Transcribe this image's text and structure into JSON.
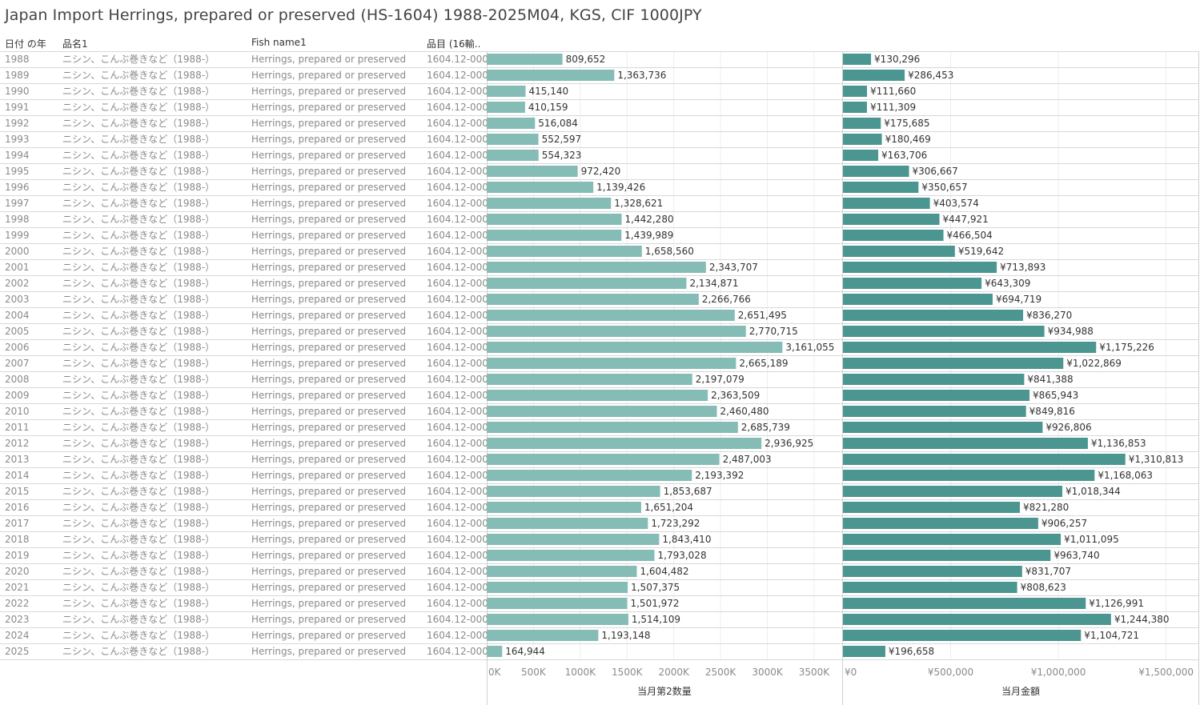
{
  "title": "Japan Import Herrings, prepared or preserved (HS-1604) 1988-2025M04, KGS, CIF 1000JPY",
  "headers": {
    "year": "日付 の年",
    "name_jp": "品名1",
    "name_en": "Fish name1",
    "code": "品目 (16輸.."
  },
  "chart_data": {
    "type": "bar",
    "orientation": "horizontal",
    "rows": [
      {
        "year": "1988",
        "name_jp": "ニシン、こんぶ巻きなど（1988-）",
        "name_en": "Herrings, prepared or preserved",
        "code": "1604.12-000"
      },
      {
        "year": "1989",
        "name_jp": "ニシン、こんぶ巻きなど（1988-）",
        "name_en": "Herrings, prepared or preserved",
        "code": "1604.12-000"
      },
      {
        "year": "1990",
        "name_jp": "ニシン、こんぶ巻きなど（1988-）",
        "name_en": "Herrings, prepared or preserved",
        "code": "1604.12-000"
      },
      {
        "year": "1991",
        "name_jp": "ニシン、こんぶ巻きなど（1988-）",
        "name_en": "Herrings, prepared or preserved",
        "code": "1604.12-000"
      },
      {
        "year": "1992",
        "name_jp": "ニシン、こんぶ巻きなど（1988-）",
        "name_en": "Herrings, prepared or preserved",
        "code": "1604.12-000"
      },
      {
        "year": "1993",
        "name_jp": "ニシン、こんぶ巻きなど（1988-）",
        "name_en": "Herrings, prepared or preserved",
        "code": "1604.12-000"
      },
      {
        "year": "1994",
        "name_jp": "ニシン、こんぶ巻きなど（1988-）",
        "name_en": "Herrings, prepared or preserved",
        "code": "1604.12-000"
      },
      {
        "year": "1995",
        "name_jp": "ニシン、こんぶ巻きなど（1988-）",
        "name_en": "Herrings, prepared or preserved",
        "code": "1604.12-000"
      },
      {
        "year": "1996",
        "name_jp": "ニシン、こんぶ巻きなど（1988-）",
        "name_en": "Herrings, prepared or preserved",
        "code": "1604.12-000"
      },
      {
        "year": "1997",
        "name_jp": "ニシン、こんぶ巻きなど（1988-）",
        "name_en": "Herrings, prepared or preserved",
        "code": "1604.12-000"
      },
      {
        "year": "1998",
        "name_jp": "ニシン、こんぶ巻きなど（1988-）",
        "name_en": "Herrings, prepared or preserved",
        "code": "1604.12-000"
      },
      {
        "year": "1999",
        "name_jp": "ニシン、こんぶ巻きなど（1988-）",
        "name_en": "Herrings, prepared or preserved",
        "code": "1604.12-000"
      },
      {
        "year": "2000",
        "name_jp": "ニシン、こんぶ巻きなど（1988-）",
        "name_en": "Herrings, prepared or preserved",
        "code": "1604.12-000"
      },
      {
        "year": "2001",
        "name_jp": "ニシン、こんぶ巻きなど（1988-）",
        "name_en": "Herrings, prepared or preserved",
        "code": "1604.12-000"
      },
      {
        "year": "2002",
        "name_jp": "ニシン、こんぶ巻きなど（1988-）",
        "name_en": "Herrings, prepared or preserved",
        "code": "1604.12-000"
      },
      {
        "year": "2003",
        "name_jp": "ニシン、こんぶ巻きなど（1988-）",
        "name_en": "Herrings, prepared or preserved",
        "code": "1604.12-000"
      },
      {
        "year": "2004",
        "name_jp": "ニシン、こんぶ巻きなど（1988-）",
        "name_en": "Herrings, prepared or preserved",
        "code": "1604.12-000"
      },
      {
        "year": "2005",
        "name_jp": "ニシン、こんぶ巻きなど（1988-）",
        "name_en": "Herrings, prepared or preserved",
        "code": "1604.12-000"
      },
      {
        "year": "2006",
        "name_jp": "ニシン、こんぶ巻きなど（1988-）",
        "name_en": "Herrings, prepared or preserved",
        "code": "1604.12-000"
      },
      {
        "year": "2007",
        "name_jp": "ニシン、こんぶ巻きなど（1988-）",
        "name_en": "Herrings, prepared or preserved",
        "code": "1604.12-000"
      },
      {
        "year": "2008",
        "name_jp": "ニシン、こんぶ巻きなど（1988-）",
        "name_en": "Herrings, prepared or preserved",
        "code": "1604.12-000"
      },
      {
        "year": "2009",
        "name_jp": "ニシン、こんぶ巻きなど（1988-）",
        "name_en": "Herrings, prepared or preserved",
        "code": "1604.12-000"
      },
      {
        "year": "2010",
        "name_jp": "ニシン、こんぶ巻きなど（1988-）",
        "name_en": "Herrings, prepared or preserved",
        "code": "1604.12-000"
      },
      {
        "year": "2011",
        "name_jp": "ニシン、こんぶ巻きなど（1988-）",
        "name_en": "Herrings, prepared or preserved",
        "code": "1604.12-000"
      },
      {
        "year": "2012",
        "name_jp": "ニシン、こんぶ巻きなど（1988-）",
        "name_en": "Herrings, prepared or preserved",
        "code": "1604.12-000"
      },
      {
        "year": "2013",
        "name_jp": "ニシン、こんぶ巻きなど（1988-）",
        "name_en": "Herrings, prepared or preserved",
        "code": "1604.12-000"
      },
      {
        "year": "2014",
        "name_jp": "ニシン、こんぶ巻きなど（1988-）",
        "name_en": "Herrings, prepared or preserved",
        "code": "1604.12-000"
      },
      {
        "year": "2015",
        "name_jp": "ニシン、こんぶ巻きなど（1988-）",
        "name_en": "Herrings, prepared or preserved",
        "code": "1604.12-000"
      },
      {
        "year": "2016",
        "name_jp": "ニシン、こんぶ巻きなど（1988-）",
        "name_en": "Herrings, prepared or preserved",
        "code": "1604.12-000"
      },
      {
        "year": "2017",
        "name_jp": "ニシン、こんぶ巻きなど（1988-）",
        "name_en": "Herrings, prepared or preserved",
        "code": "1604.12-000"
      },
      {
        "year": "2018",
        "name_jp": "ニシン、こんぶ巻きなど（1988-）",
        "name_en": "Herrings, prepared or preserved",
        "code": "1604.12-000"
      },
      {
        "year": "2019",
        "name_jp": "ニシン、こんぶ巻きなど（1988-）",
        "name_en": "Herrings, prepared or preserved",
        "code": "1604.12-000"
      },
      {
        "year": "2020",
        "name_jp": "ニシン、こんぶ巻きなど（1988-）",
        "name_en": "Herrings, prepared or preserved",
        "code": "1604.12-000"
      },
      {
        "year": "2021",
        "name_jp": "ニシン、こんぶ巻きなど（1988-）",
        "name_en": "Herrings, prepared or preserved",
        "code": "1604.12-000"
      },
      {
        "year": "2022",
        "name_jp": "ニシン、こんぶ巻きなど（1988-）",
        "name_en": "Herrings, prepared or preserved",
        "code": "1604.12-000"
      },
      {
        "year": "2023",
        "name_jp": "ニシン、こんぶ巻きなど（1988-）",
        "name_en": "Herrings, prepared or preserved",
        "code": "1604.12-000"
      },
      {
        "year": "2024",
        "name_jp": "ニシン、こんぶ巻きなど（1988-）",
        "name_en": "Herrings, prepared or preserved",
        "code": "1604.12-000"
      },
      {
        "year": "2025",
        "name_jp": "ニシン、こんぶ巻きなど（1988-）",
        "name_en": "Herrings, prepared or preserved",
        "code": "1604.12-000"
      }
    ],
    "series": [
      {
        "name": "当月第2数量",
        "color": "#86bcb6",
        "values": [
          809652,
          1363736,
          415140,
          410159,
          516084,
          552597,
          554323,
          972420,
          1139426,
          1328621,
          1442280,
          1439989,
          1658560,
          2343707,
          2134871,
          2266766,
          2651495,
          2770715,
          3161055,
          2665189,
          2197079,
          2363509,
          2460480,
          2685739,
          2936925,
          2487003,
          2193392,
          1853687,
          1651204,
          1723292,
          1843410,
          1793028,
          1604482,
          1507375,
          1501972,
          1514109,
          1193148,
          164944
        ],
        "labels": [
          "809,652",
          "1,363,736",
          "415,140",
          "410,159",
          "516,084",
          "552,597",
          "554,323",
          "972,420",
          "1,139,426",
          "1,328,621",
          "1,442,280",
          "1,439,989",
          "1,658,560",
          "2,343,707",
          "2,134,871",
          "2,266,766",
          "2,651,495",
          "2,770,715",
          "3,161,055",
          "2,665,189",
          "2,197,079",
          "2,363,509",
          "2,460,480",
          "2,685,739",
          "2,936,925",
          "2,487,003",
          "2,193,392",
          "1,853,687",
          "1,651,204",
          "1,723,292",
          "1,843,410",
          "1,793,028",
          "1,604,482",
          "1,507,375",
          "1,501,972",
          "1,514,109",
          "1,193,148",
          "164,944"
        ],
        "xlim": [
          0,
          3800000
        ],
        "ticks": [
          0,
          500000,
          1000000,
          1500000,
          2000000,
          2500000,
          3000000,
          3500000
        ],
        "tick_labels": [
          "0K",
          "500K",
          "1000K",
          "1500K",
          "2000K",
          "2500K",
          "3000K",
          "3500K"
        ],
        "xlabel": "当月第2数量"
      },
      {
        "name": "当月金額",
        "color": "#4b9690",
        "values": [
          130296,
          286453,
          111660,
          111309,
          175685,
          180469,
          163706,
          306667,
          350657,
          403574,
          447921,
          466504,
          519642,
          713893,
          643309,
          694719,
          836270,
          934988,
          1175226,
          1022869,
          841388,
          865943,
          849816,
          926806,
          1136853,
          1310813,
          1168063,
          1018344,
          821280,
          906257,
          1011095,
          963740,
          831707,
          808623,
          1126991,
          1244380,
          1104721,
          196658
        ],
        "labels": [
          "¥130,296",
          "¥286,453",
          "¥111,660",
          "¥111,309",
          "¥175,685",
          "¥180,469",
          "¥163,706",
          "¥306,667",
          "¥350,657",
          "¥403,574",
          "¥447,921",
          "¥466,504",
          "¥519,642",
          "¥713,893",
          "¥643,309",
          "¥694,719",
          "¥836,270",
          "¥934,988",
          "¥1,175,226",
          "¥1,022,869",
          "¥841,388",
          "¥865,943",
          "¥849,816",
          "¥926,806",
          "¥1,136,853",
          "¥1,310,813",
          "¥1,168,063",
          "¥1,018,344",
          "¥821,280",
          "¥906,257",
          "¥1,011,095",
          "¥963,740",
          "¥831,707",
          "¥808,623",
          "¥1,126,991",
          "¥1,244,380",
          "¥1,104,721",
          "¥196,658"
        ],
        "xlim": [
          0,
          1650000
        ],
        "ticks": [
          0,
          500000,
          1000000,
          1500000
        ],
        "tick_labels": [
          "¥0",
          "¥500,000",
          "¥1,000,000",
          "¥1,500,000"
        ],
        "xlabel": "当月金額"
      }
    ]
  }
}
